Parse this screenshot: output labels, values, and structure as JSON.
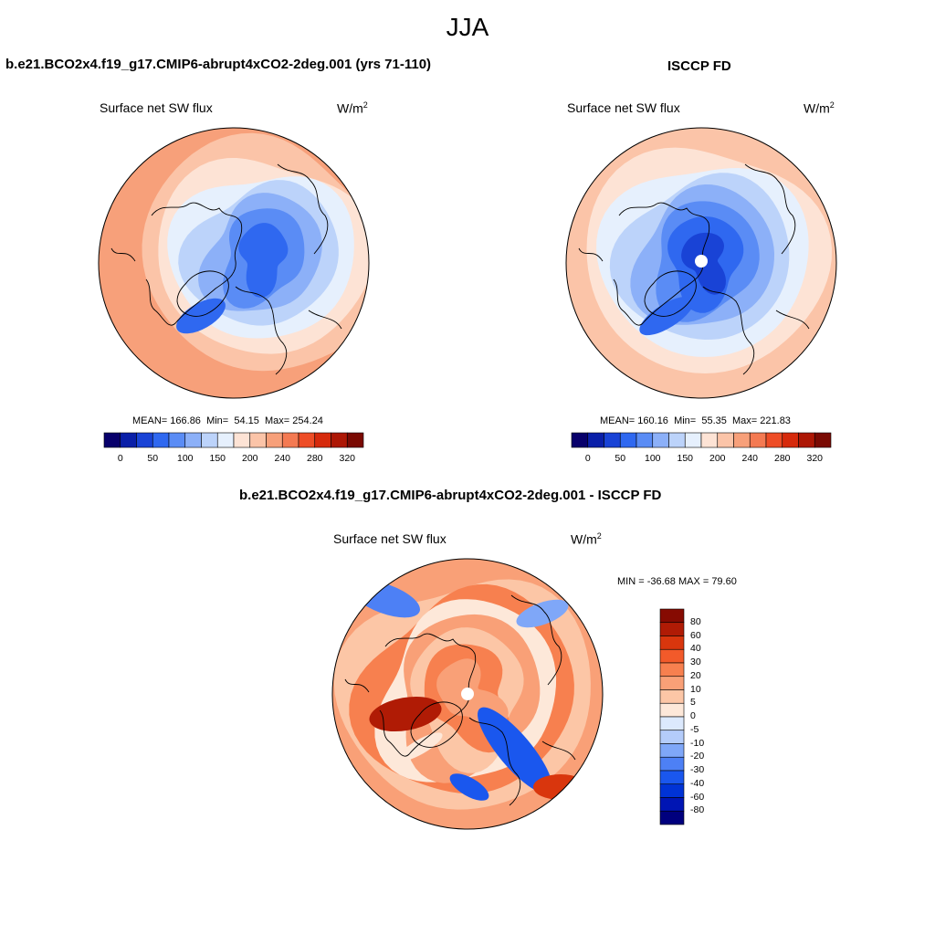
{
  "figure": {
    "title": "JJA"
  },
  "colors": {
    "abs_scale": [
      "#08006b",
      "#0a1fa8",
      "#1943d6",
      "#2f68f0",
      "#5a8cf5",
      "#8cb0f8",
      "#bcd3fa",
      "#e6f0fd",
      "#fde3d5",
      "#fbc4a8",
      "#f7a07a",
      "#f47a52",
      "#ee4d26",
      "#d62a0c",
      "#ad1705",
      "#7a0a03"
    ],
    "diff_scale": [
      "#00007e",
      "#0015b4",
      "#0033d6",
      "#1a57ee",
      "#4d80f5",
      "#7fa7f8",
      "#b4ccfa",
      "#dce9fd",
      "#fde8d9",
      "#fcc6a6",
      "#f9a077",
      "#f7804f",
      "#f25a2a",
      "#d9360d",
      "#b01b05",
      "#860b02"
    ]
  },
  "chart_data": [
    {
      "type": "heatmap",
      "projection": "north-polar-stereographic",
      "panel_title": "b.e21.BCO2x4.f19_g17.CMIP6-abrupt4xCO2-2deg.001 (yrs 71-110)",
      "variable": "Surface net SW flux",
      "units": "W/m",
      "units_sup": "2",
      "stats": {
        "mean_label": "MEAN=",
        "mean": "166.86",
        "min_label": "Min=",
        "min": "54.15",
        "max_label": "Max=",
        "max": "254.24"
      },
      "colorbar": {
        "orientation": "horizontal",
        "levels": [
          0,
          25,
          50,
          75,
          100,
          125,
          150,
          175,
          200,
          220,
          240,
          260,
          280,
          300,
          320
        ],
        "tick_labels": [
          "0",
          "50",
          "100",
          "150",
          "200",
          "240",
          "280",
          "320"
        ]
      }
    },
    {
      "type": "heatmap",
      "projection": "north-polar-stereographic",
      "panel_title": "ISCCP FD",
      "variable": "Surface net SW flux",
      "units": "W/m",
      "units_sup": "2",
      "stats": {
        "mean_label": "MEAN=",
        "mean": "160.16",
        "min_label": "Min=",
        "min": "55.35",
        "max_label": "Max=",
        "max": "221.83"
      },
      "colorbar": {
        "orientation": "horizontal",
        "levels": [
          0,
          25,
          50,
          75,
          100,
          125,
          150,
          175,
          200,
          220,
          240,
          260,
          280,
          300,
          320
        ],
        "tick_labels": [
          "0",
          "50",
          "100",
          "150",
          "200",
          "240",
          "280",
          "320"
        ]
      }
    },
    {
      "type": "heatmap",
      "projection": "north-polar-stereographic",
      "panel_title": "b.e21.BCO2x4.f19_g17.CMIP6-abrupt4xCO2-2deg.001 - ISCCP FD",
      "variable": "Surface net SW flux",
      "units": "W/m",
      "units_sup": "2",
      "stats_text": "MIN = -36.68 MAX =  79.60",
      "stats": {
        "min": -36.68,
        "max": 79.6
      },
      "colorbar": {
        "orientation": "vertical",
        "levels": [
          80,
          60,
          40,
          30,
          20,
          10,
          5,
          0,
          -5,
          -10,
          -20,
          -30,
          -40,
          -60,
          -80
        ],
        "tick_labels": [
          "80",
          "60",
          "40",
          "30",
          "20",
          "10",
          "5",
          "0",
          "-5",
          "-10",
          "-20",
          "-30",
          "-40",
          "-60",
          "-80"
        ]
      }
    }
  ]
}
